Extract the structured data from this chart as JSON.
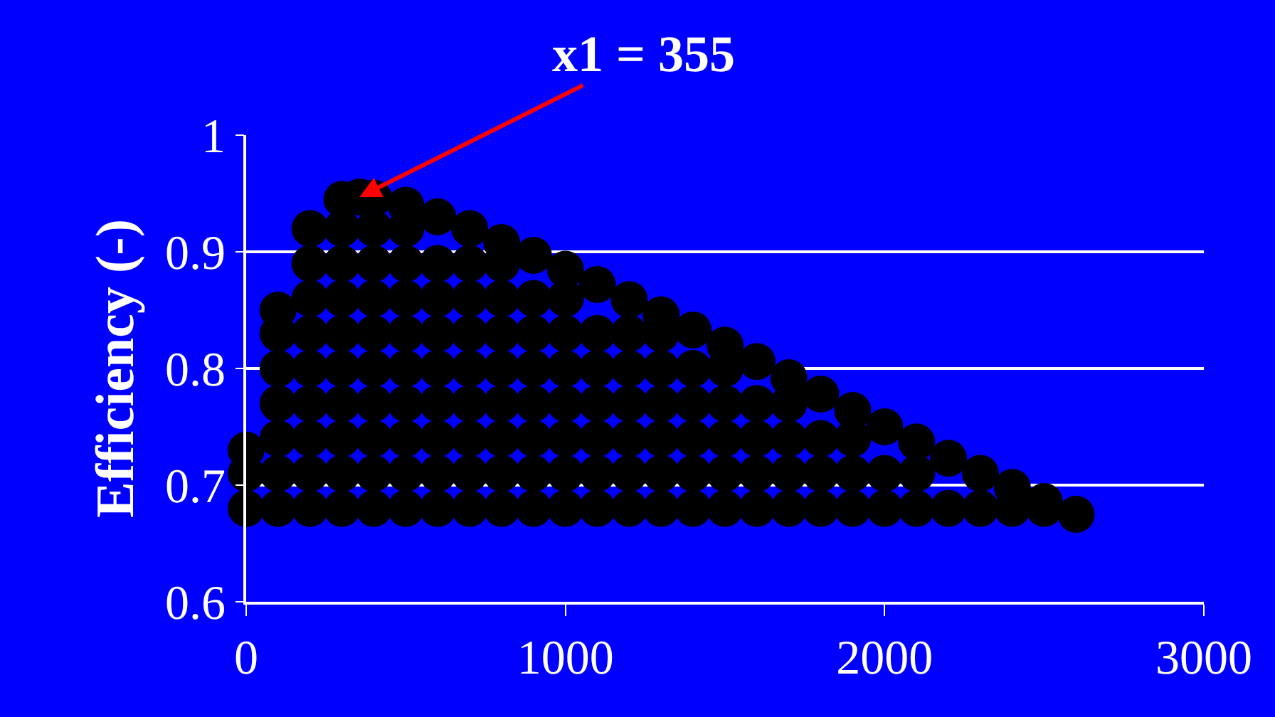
{
  "chart_data": {
    "type": "scatter",
    "ylabel": "Efficiency (-)",
    "xlim": [
      0,
      3000
    ],
    "xticks": [
      0,
      1000,
      2000,
      3000
    ],
    "ylim": [
      0.6,
      1
    ],
    "yticks": [
      0.6,
      0.7,
      0.8,
      0.9,
      1
    ],
    "grid": "y",
    "legend": false,
    "marker": "circle",
    "annotations": [
      {
        "text": "x1 = 355",
        "x": 355,
        "y": 0.947
      }
    ],
    "series": [
      {
        "color": "#000000",
        "x": [
          0,
          0,
          0,
          100,
          100,
          100,
          100,
          100,
          100,
          100,
          200,
          200,
          200,
          200,
          200,
          200,
          200,
          200,
          200,
          300,
          300,
          300,
          300,
          300,
          300,
          300,
          300,
          300,
          300,
          355,
          400,
          400,
          400,
          400,
          400,
          400,
          400,
          400,
          400,
          400,
          500,
          500,
          500,
          500,
          500,
          500,
          500,
          500,
          500,
          500,
          600,
          600,
          600,
          600,
          600,
          600,
          600,
          600,
          600,
          700,
          700,
          700,
          700,
          700,
          700,
          700,
          700,
          700,
          800,
          800,
          800,
          800,
          800,
          800,
          800,
          800,
          800,
          900,
          900,
          900,
          900,
          900,
          900,
          900,
          900,
          1000,
          1000,
          1000,
          1000,
          1000,
          1000,
          1000,
          1000,
          1100,
          1100,
          1100,
          1100,
          1100,
          1100,
          1100,
          1200,
          1200,
          1200,
          1200,
          1200,
          1200,
          1200,
          1300,
          1300,
          1300,
          1300,
          1300,
          1300,
          1300,
          1400,
          1400,
          1400,
          1400,
          1400,
          1400,
          1500,
          1500,
          1500,
          1500,
          1500,
          1500,
          1600,
          1600,
          1600,
          1600,
          1600,
          1700,
          1700,
          1700,
          1700,
          1700,
          1800,
          1800,
          1800,
          1800,
          1900,
          1900,
          1900,
          1900,
          2000,
          2000,
          2000,
          2100,
          2100,
          2100,
          2200,
          2200,
          2300,
          2300,
          2400,
          2400,
          2500,
          2500,
          2600
        ],
        "values": [
          0.68,
          0.71,
          0.73,
          0.68,
          0.71,
          0.74,
          0.77,
          0.8,
          0.83,
          0.85,
          0.68,
          0.71,
          0.74,
          0.77,
          0.8,
          0.83,
          0.86,
          0.89,
          0.92,
          0.68,
          0.71,
          0.74,
          0.77,
          0.8,
          0.83,
          0.86,
          0.89,
          0.92,
          0.945,
          0.947,
          0.68,
          0.71,
          0.74,
          0.77,
          0.8,
          0.83,
          0.86,
          0.89,
          0.92,
          0.946,
          0.68,
          0.71,
          0.74,
          0.77,
          0.8,
          0.83,
          0.86,
          0.89,
          0.92,
          0.94,
          0.68,
          0.71,
          0.74,
          0.77,
          0.8,
          0.83,
          0.86,
          0.89,
          0.93,
          0.68,
          0.71,
          0.74,
          0.77,
          0.8,
          0.83,
          0.86,
          0.89,
          0.92,
          0.68,
          0.71,
          0.74,
          0.77,
          0.8,
          0.83,
          0.86,
          0.89,
          0.908,
          0.68,
          0.71,
          0.74,
          0.77,
          0.8,
          0.83,
          0.86,
          0.897,
          0.68,
          0.71,
          0.74,
          0.77,
          0.8,
          0.83,
          0.86,
          0.885,
          0.68,
          0.71,
          0.74,
          0.77,
          0.8,
          0.83,
          0.872,
          0.68,
          0.71,
          0.74,
          0.77,
          0.8,
          0.83,
          0.859,
          0.68,
          0.71,
          0.74,
          0.77,
          0.8,
          0.83,
          0.846,
          0.68,
          0.71,
          0.74,
          0.77,
          0.8,
          0.833,
          0.68,
          0.71,
          0.74,
          0.77,
          0.8,
          0.82,
          0.68,
          0.71,
          0.74,
          0.77,
          0.806,
          0.68,
          0.71,
          0.74,
          0.77,
          0.792,
          0.68,
          0.71,
          0.74,
          0.778,
          0.68,
          0.71,
          0.74,
          0.764,
          0.68,
          0.71,
          0.75,
          0.68,
          0.71,
          0.737,
          0.68,
          0.723,
          0.68,
          0.71,
          0.68,
          0.698,
          0.68,
          0.686,
          0.675
        ]
      }
    ]
  }
}
